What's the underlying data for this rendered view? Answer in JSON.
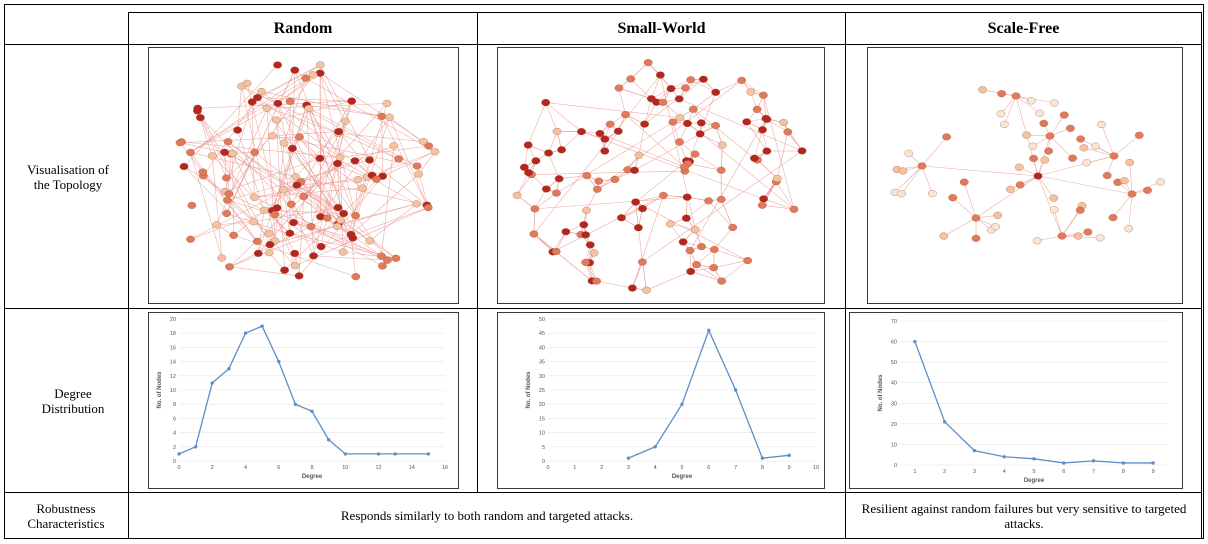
{
  "table": {
    "columns": [
      "Random",
      "Small-World",
      "Scale-Free"
    ],
    "rows": {
      "topology": "Visualisation of the Topology",
      "degree": "Degree Distribution",
      "robustness": "Robustness Characteristics"
    },
    "robustness_text": {
      "random_smallworld": "Responds similarly to both random and targeted attacks.",
      "scalefree": "Resilient against random failures but very sensitive to targeted attacks."
    }
  },
  "colors": {
    "node_light": "#f3c3a0",
    "node_mid": "#e07a5a",
    "node_dark": "#b5271e",
    "edge": "#e89a92",
    "line": "#5b8fc9"
  },
  "chart_data": [
    {
      "type": "line",
      "title": "",
      "xlabel": "Degree",
      "ylabel": "No. of Nodes",
      "xlim": [
        0,
        16
      ],
      "ylim": [
        0,
        20
      ],
      "xticks": [
        0,
        2,
        4,
        6,
        8,
        10,
        12,
        14,
        16
      ],
      "yticks": [
        0,
        2,
        4,
        6,
        8,
        10,
        12,
        14,
        16,
        18,
        20
      ],
      "x": [
        0,
        1,
        2,
        3,
        4,
        5,
        6,
        7,
        8,
        9,
        10,
        12,
        13,
        15
      ],
      "y": [
        1,
        2,
        11,
        13,
        18,
        19,
        14,
        8,
        7,
        3,
        1,
        1,
        1,
        1
      ]
    },
    {
      "type": "line",
      "title": "",
      "xlabel": "Degree",
      "ylabel": "No. of Nodes",
      "xlim": [
        0,
        10
      ],
      "ylim": [
        0,
        50
      ],
      "xticks": [
        0,
        1,
        2,
        3,
        4,
        5,
        6,
        7,
        8,
        9,
        10
      ],
      "yticks": [
        0,
        5,
        10,
        15,
        20,
        25,
        30,
        35,
        40,
        45,
        50
      ],
      "x": [
        3,
        4,
        5,
        6,
        7,
        8,
        9
      ],
      "y": [
        1,
        5,
        20,
        46,
        25,
        1,
        2
      ]
    },
    {
      "type": "line",
      "title": "",
      "xlabel": "Degree",
      "ylabel": "No. of Nodes",
      "xlim": [
        0.5,
        9.5
      ],
      "ylim": [
        0,
        70
      ],
      "xticks": [
        1,
        2,
        3,
        4,
        5,
        6,
        7,
        8,
        9
      ],
      "yticks": [
        0,
        10,
        20,
        30,
        40,
        50,
        60,
        70
      ],
      "x": [
        1,
        2,
        3,
        4,
        5,
        6,
        7,
        8,
        9
      ],
      "y": [
        60,
        21,
        7,
        4,
        3,
        1,
        2,
        1,
        1
      ]
    }
  ]
}
